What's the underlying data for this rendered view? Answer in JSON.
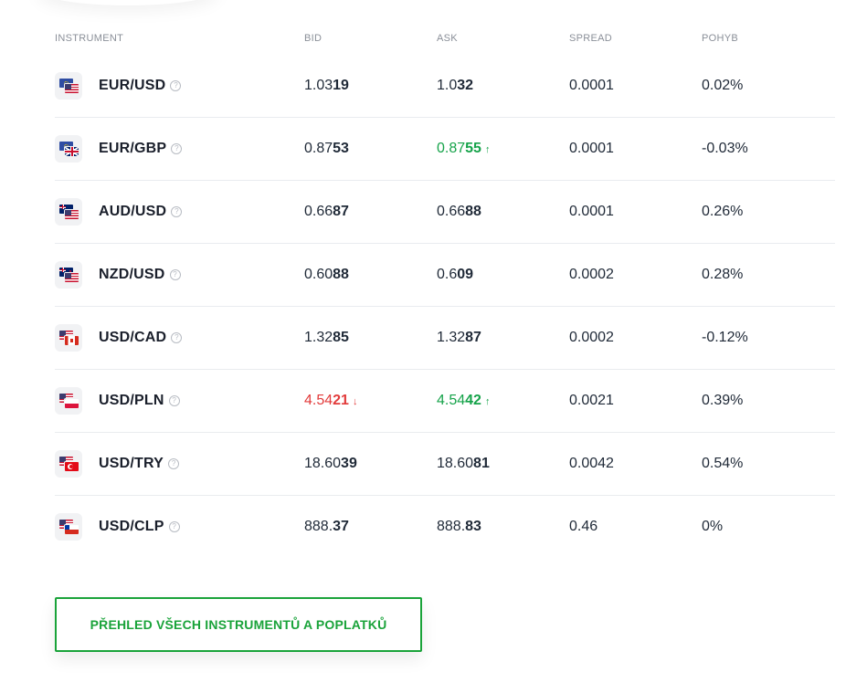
{
  "table": {
    "headers": [
      "INSTRUMENT",
      "BID",
      "ASK",
      "SPREAD",
      "POHYB"
    ],
    "rows": [
      {
        "pair": "EUR/USD",
        "flag1": "eu-flag",
        "flag2": "us-flag",
        "bid_main": "1.03",
        "bid_bold": "19",
        "bid_dir": "",
        "ask_main": "1.0",
        "ask_bold": "32",
        "ask_dir": "",
        "spread": "0.0001",
        "change": "0.02%"
      },
      {
        "pair": "EUR/GBP",
        "flag1": "eu-flag",
        "flag2": "gb-flag",
        "bid_main": "0.87",
        "bid_bold": "53",
        "bid_dir": "",
        "ask_main": "0.87",
        "ask_bold": "55",
        "ask_dir": "up",
        "spread": "0.0001",
        "change": "-0.03%"
      },
      {
        "pair": "AUD/USD",
        "flag1": "au-flag",
        "flag2": "us-flag",
        "bid_main": "0.66",
        "bid_bold": "87",
        "bid_dir": "",
        "ask_main": "0.66",
        "ask_bold": "88",
        "ask_dir": "",
        "spread": "0.0001",
        "change": "0.26%"
      },
      {
        "pair": "NZD/USD",
        "flag1": "nz-flag",
        "flag2": "us-flag",
        "bid_main": "0.60",
        "bid_bold": "88",
        "bid_dir": "",
        "ask_main": "0.6",
        "ask_bold": "09",
        "ask_dir": "",
        "spread": "0.0002",
        "change": "0.28%"
      },
      {
        "pair": "USD/CAD",
        "flag1": "us-flag",
        "flag2": "ca-flag",
        "bid_main": "1.32",
        "bid_bold": "85",
        "bid_dir": "",
        "ask_main": "1.32",
        "ask_bold": "87",
        "ask_dir": "",
        "spread": "0.0002",
        "change": "-0.12%"
      },
      {
        "pair": "USD/PLN",
        "flag1": "us-flag",
        "flag2": "pl-flag",
        "bid_main": "4.54",
        "bid_bold": "21",
        "bid_dir": "down",
        "ask_main": "4.54",
        "ask_bold": "42",
        "ask_dir": "up",
        "spread": "0.0021",
        "change": "0.39%"
      },
      {
        "pair": "USD/TRY",
        "flag1": "us-flag",
        "flag2": "tr-flag",
        "bid_main": "18.60",
        "bid_bold": "39",
        "bid_dir": "",
        "ask_main": "18.60",
        "ask_bold": "81",
        "ask_dir": "",
        "spread": "0.0042",
        "change": "0.54%"
      },
      {
        "pair": "USD/CLP",
        "flag1": "us-flag",
        "flag2": "cl-flag",
        "bid_main": "888.",
        "bid_bold": "37",
        "bid_dir": "",
        "ask_main": "888.",
        "ask_bold": "83",
        "ask_dir": "",
        "spread": "0.46",
        "change": "0%"
      }
    ]
  },
  "help_glyph": "?",
  "arrows": {
    "up": "↑",
    "down": "↓"
  },
  "colors": {
    "up": "#16a34a",
    "down": "#e23b3b",
    "accent": "#1aa33a"
  },
  "cta": {
    "label": "PŘEHLED VŠECH INSTRUMENTŮ A POPLATKŮ"
  }
}
